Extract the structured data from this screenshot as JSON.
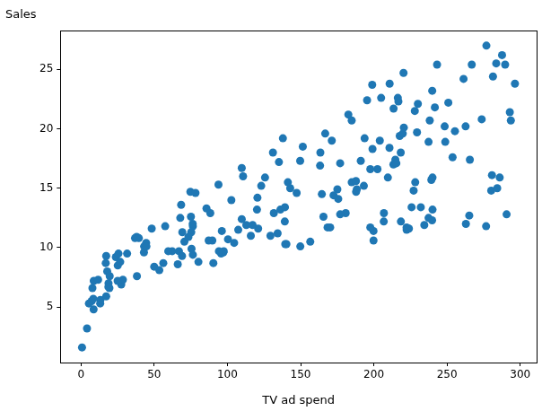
{
  "chart_data": {
    "type": "scatter",
    "x_label": "TV ad spend",
    "y_label": "Sales",
    "x": [
      230.1,
      44.5,
      17.2,
      151.5,
      180.8,
      8.7,
      57.5,
      120.2,
      8.6,
      199.8,
      66.1,
      214.7,
      23.8,
      97.5,
      204.1,
      195.4,
      67.8,
      281.4,
      69.2,
      147.3,
      218.4,
      237.4,
      13.2,
      228.3,
      62.3,
      262.9,
      142.9,
      240.1,
      248.8,
      70.6,
      292.9,
      112.9,
      97.2,
      265.6,
      95.7,
      290.7,
      266.9,
      74.7,
      43.1,
      228,
      202.5,
      177,
      293.6,
      206.9,
      25.1,
      175.1,
      89.7,
      239.9,
      227.2,
      66.9,
      199.8,
      100.4,
      216.4,
      182.6,
      262.7,
      198.9,
      7.3,
      136.2,
      210.8,
      210.7,
      53.5,
      261.3,
      239.3,
      102.7,
      131.1,
      69,
      31.5,
      139.3,
      237.4,
      216.8,
      199.1,
      109.8,
      26.8,
      129.4,
      213.4,
      16.9,
      27.5,
      120.5,
      5.4,
      116,
      76.4,
      239.8,
      75.3,
      68.4,
      213.5,
      193.2,
      76.3,
      110.7,
      88.3,
      109.8,
      134.3,
      28.6,
      217.7,
      250.9,
      107.4,
      163.3,
      197.6,
      184.9,
      289.7,
      135.2,
      222.4,
      296.4,
      280.2,
      187.9,
      238.2,
      137.9,
      25,
      90.4,
      13.1,
      255.4,
      225.8,
      241.7,
      175.7,
      209.6,
      78.2,
      75.1,
      139.2,
      76.4,
      125.7,
      19.4,
      141.3,
      18.8,
      224,
      123.1,
      229.5,
      87.2,
      7.8,
      80.2,
      220.3,
      59.6,
      0.7,
      265.2,
      8.4,
      219.8,
      36.9,
      48.3,
      25.6,
      273.7,
      43,
      184.9,
      73.4,
      193.7,
      220.5,
      104.6,
      96.2,
      140.3,
      240.1,
      243.2,
      38,
      44.7,
      280.7,
      121,
      197.6,
      171.3,
      187.8,
      4.1,
      93.9,
      149.8,
      11.7,
      131.7,
      172.5,
      85.7,
      188.4,
      163.5,
      117.2,
      234.5,
      17.9,
      206.8,
      215.4,
      284.3,
      50,
      164.5,
      19.6,
      168.4,
      222.4,
      276.9,
      248.4,
      170.2,
      276.7,
      165.6,
      156.6,
      218.5,
      56.2,
      287.6,
      253.8,
      205,
      139.5,
      191.1,
      286,
      18.7,
      39.5,
      75.5,
      17.2,
      166.8,
      149.7,
      38.2,
      94.2,
      177,
      283.6,
      232.1
    ],
    "values": [
      22.1,
      10.4,
      9.3,
      18.5,
      12.9,
      7.2,
      11.8,
      13.2,
      4.8,
      10.6,
      8.6,
      17.4,
      9.2,
      9.7,
      19,
      22.4,
      12.5,
      24.4,
      11.3,
      14.6,
      18,
      12.5,
      5.6,
      15.5,
      9.7,
      12,
      15,
      15.9,
      18.9,
      10.5,
      21.4,
      11.9,
      9.6,
      17.4,
      9.5,
      12.8,
      25.4,
      14.7,
      10.1,
      21.5,
      16.6,
      17.1,
      20.7,
      12.9,
      8.5,
      14.9,
      10.6,
      23.2,
      14.8,
      9.7,
      11.4,
      10.7,
      22.6,
      21.2,
      20.2,
      23.7,
      5.5,
      13.2,
      23.8,
      18.4,
      8.1,
      24.2,
      15.7,
      14,
      18,
      9.3,
      9.5,
      13.4,
      18.9,
      22.3,
      18.3,
      12.4,
      8.8,
      11,
      17,
      8.7,
      6.9,
      14.2,
      5.3,
      11,
      11.8,
      12.3,
      11.3,
      13.6,
      21.7,
      15.2,
      12,
      16,
      12.9,
      16.7,
      11.2,
      7.3,
      19.4,
      22.2,
      11.5,
      16.9,
      11.7,
      15.5,
      25.4,
      17.2,
      11.7,
      23.8,
      14.8,
      14.7,
      20.7,
      19.2,
      7.2,
      8.7,
      5.3,
      19.8,
      13.4,
      21.8,
      14.1,
      15.9,
      14.6,
      12.6,
      12.2,
      9.4,
      15.9,
      6.6,
      15.5,
      7,
      11.6,
      15.2,
      19.7,
      10.6,
      6.6,
      8.8,
      24.7,
      9.7,
      1.6,
      12.7,
      5.7,
      19.6,
      10.8,
      11.6,
      9.5,
      20.8,
      9.6,
      20.7,
      10.9,
      19.2,
      20.1,
      10.4,
      11.4,
      10.3,
      13.2,
      25.4,
      10.9,
      10.1,
      16.1,
      11.6,
      16.6,
      19,
      15.6,
      3.2,
      15.3,
      10.1,
      7.3,
      12.9,
      14.4,
      13.3,
      14.9,
      18,
      11.9,
      11.9,
      8,
      12.2,
      17.1,
      15,
      8.4,
      14.5,
      7.6,
      11.7,
      11.5,
      27,
      20.2,
      11.7,
      11.8,
      12.6,
      10.5,
      12.2,
      8.7,
      26.2,
      17.6,
      22.6,
      10.3,
      17.3,
      15.9,
      6.7,
      10.8,
      9.9,
      5.9,
      19.6,
      17.3,
      7.6,
      9.7,
      12.8,
      25.5,
      13.4
    ],
    "color": "#1f77b4",
    "marker": "circle",
    "xlim": [
      -14.1,
      311.2
    ],
    "xticks": [
      0,
      50,
      100,
      150,
      200,
      250,
      300
    ],
    "ylim": [
      0.33,
      28.27
    ],
    "yticks": [
      5,
      10,
      15,
      20,
      25
    ],
    "grid": false
  }
}
